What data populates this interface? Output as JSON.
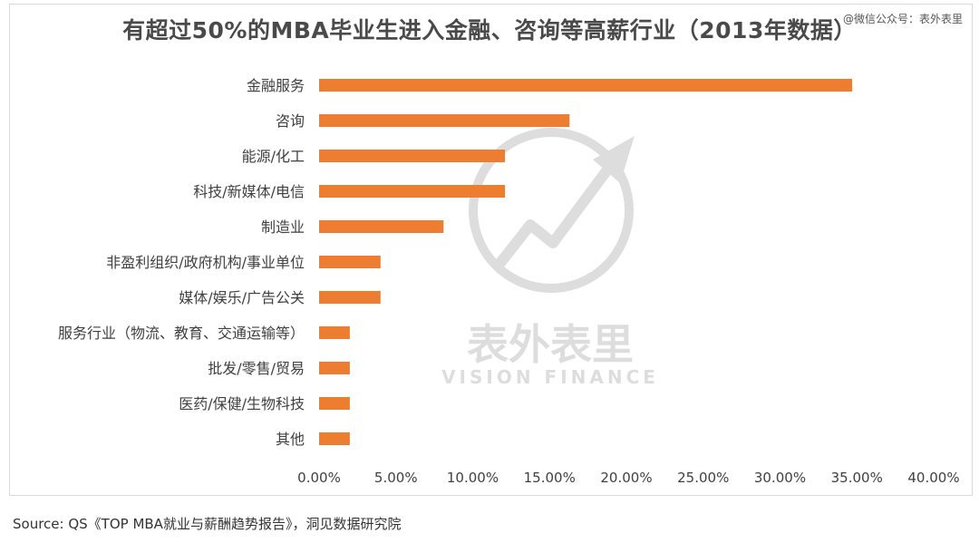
{
  "title": "有超过50%的MBA毕业生进入金融、咨询等高薪行业（2013年数据）",
  "watermark": "@微信公众号：表外表里",
  "source": "Source: QS《TOP MBA就业与薪酬趋势报告》，洞见数据研究院",
  "logo": {
    "cn": "表外表里",
    "en": "VISION FINANCE"
  },
  "colors": {
    "bar": "#ED7D31",
    "axis_text": "#404040",
    "watermark_logo": "#000000"
  },
  "chart_data": {
    "type": "bar",
    "orientation": "horizontal",
    "categories": [
      "金融服务",
      "咨询",
      "能源/化工",
      "科技/新媒体/电信",
      "制造业",
      "非盈利组织/政府机构/事业单位",
      "媒体/娱乐/广告公关",
      "服务行业（物流、教育、交通运输等）",
      "批发/零售/贸易",
      "医药/保健/生物科技",
      "其他"
    ],
    "values": [
      34.7,
      16.3,
      12.1,
      12.1,
      8.1,
      4.0,
      4.0,
      2.0,
      2.0,
      2.0,
      2.0
    ],
    "xlim": [
      0,
      40
    ],
    "x_ticks": [
      "0.00%",
      "5.00%",
      "10.00%",
      "15.00%",
      "20.00%",
      "25.00%",
      "30.00%",
      "35.00%",
      "40.00%"
    ],
    "title": "有超过50%的MBA毕业生进入金融、咨询等高薪行业（2013年数据）",
    "xlabel": "",
    "ylabel": "",
    "grid": false,
    "legend": "none"
  }
}
